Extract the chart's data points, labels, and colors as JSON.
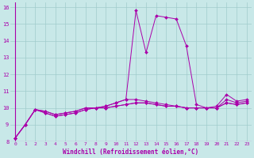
{
  "xlabel": "Windchill (Refroidissement éolien,°C)",
  "background_color": "#c8e8e8",
  "grid_color": "#a0cccc",
  "line_color": "#aa00aa",
  "xlim_min": -0.5,
  "xlim_max": 23.5,
  "ylim_min": 8,
  "ylim_max": 16.3,
  "yticks": [
    8,
    9,
    10,
    11,
    12,
    13,
    14,
    15,
    16
  ],
  "xticks": [
    0,
    1,
    2,
    3,
    4,
    5,
    6,
    7,
    8,
    9,
    10,
    11,
    12,
    13,
    14,
    15,
    16,
    17,
    18,
    19,
    20,
    21,
    22,
    23
  ],
  "series": [
    [
      8.2,
      9.0,
      9.9,
      9.8,
      9.6,
      9.7,
      9.8,
      10.0,
      10.0,
      10.1,
      10.3,
      10.5,
      15.8,
      13.3,
      15.5,
      15.4,
      15.3,
      13.7,
      10.2,
      10.0,
      10.1,
      10.8,
      10.4,
      10.5
    ],
    [
      8.2,
      9.0,
      9.9,
      9.8,
      9.6,
      9.7,
      9.8,
      10.0,
      10.0,
      10.1,
      10.3,
      10.5,
      10.5,
      10.4,
      10.3,
      10.2,
      10.1,
      10.0,
      10.0,
      10.0,
      10.0,
      10.5,
      10.3,
      10.4
    ],
    [
      8.2,
      9.0,
      9.9,
      9.7,
      9.5,
      9.6,
      9.7,
      9.9,
      10.0,
      10.0,
      10.1,
      10.2,
      10.3,
      10.3,
      10.2,
      10.1,
      10.1,
      10.0,
      10.0,
      10.0,
      10.0,
      10.3,
      10.2,
      10.3
    ],
    [
      8.2,
      9.0,
      9.9,
      9.7,
      9.5,
      9.6,
      9.7,
      9.9,
      10.0,
      10.0,
      10.1,
      10.2,
      10.3,
      10.3,
      10.2,
      10.1,
      10.1,
      10.0,
      10.0,
      10.0,
      10.0,
      10.3,
      10.2,
      10.3
    ]
  ]
}
